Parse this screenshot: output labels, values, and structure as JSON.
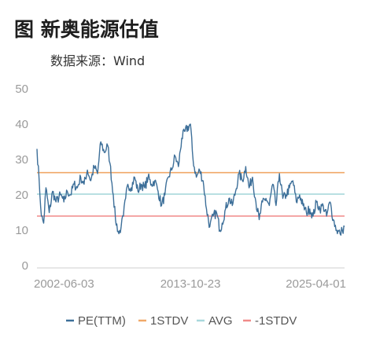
{
  "header": {
    "title": "图 新奥能源估值",
    "source": "数据来源：Wind"
  },
  "chart_data": {
    "type": "line",
    "title": "图 新奥能源估值",
    "subtitle": "数据来源：Wind",
    "xlabel": "",
    "ylabel": "",
    "ylim": [
      0,
      50
    ],
    "yticks": [
      0,
      10,
      20,
      30,
      40,
      50
    ],
    "x_tick_labels": [
      "2002-06-03",
      "2013-10-23",
      "2025-04-01"
    ],
    "x_tick_dates": [
      "2002-06-03",
      "2013-10-23",
      "2025-04-01"
    ],
    "grid": false,
    "legend_position": "bottom",
    "colors": {
      "pe": "#3d6f99",
      "std_plus": "#f0a868",
      "avg": "#a8d8dc",
      "std_minus": "#f08a88"
    },
    "series": [
      {
        "name": "PE(TTM)",
        "type": "line",
        "x": [
          "2002-06-03",
          "2002-08-01",
          "2002-10-01",
          "2002-12-01",
          "2003-02-01",
          "2003-05-01",
          "2003-08-01",
          "2003-11-01",
          "2004-03-01",
          "2004-06-01",
          "2004-09-01",
          "2004-12-01",
          "2005-03-01",
          "2005-06-01",
          "2005-09-01",
          "2005-12-01",
          "2006-03-01",
          "2006-06-01",
          "2006-09-01",
          "2006-12-01",
          "2007-03-01",
          "2007-06-01",
          "2007-09-01",
          "2007-11-01",
          "2008-02-01",
          "2008-04-01",
          "2008-07-01",
          "2008-09-01",
          "2008-11-01",
          "2009-01-01",
          "2009-03-01",
          "2009-06-01",
          "2009-09-01",
          "2009-12-01",
          "2010-03-01",
          "2010-06-01",
          "2010-09-01",
          "2010-12-01",
          "2011-03-01",
          "2011-06-01",
          "2011-09-01",
          "2011-12-01",
          "2012-03-01",
          "2012-06-01",
          "2012-09-01",
          "2012-12-01",
          "2013-03-01",
          "2013-06-01",
          "2013-10-23",
          "2014-01-01",
          "2014-04-01",
          "2014-07-01",
          "2014-10-01",
          "2015-01-01",
          "2015-04-01",
          "2015-07-01",
          "2015-10-01",
          "2016-01-01",
          "2016-03-01",
          "2016-06-01",
          "2016-09-01",
          "2016-12-01",
          "2017-03-01",
          "2017-06-01",
          "2017-09-01",
          "2017-12-01",
          "2018-03-01",
          "2018-06-01",
          "2018-09-01",
          "2018-12-01",
          "2019-03-01",
          "2019-06-01",
          "2019-09-01",
          "2019-12-01",
          "2020-03-01",
          "2020-06-01",
          "2020-09-01",
          "2020-12-01",
          "2021-03-01",
          "2021-06-01",
          "2021-09-01",
          "2021-12-01",
          "2022-03-01",
          "2022-06-01",
          "2022-09-01",
          "2022-12-01",
          "2023-03-01",
          "2023-06-01",
          "2023-09-01",
          "2023-12-01",
          "2024-03-01",
          "2024-06-01",
          "2024-09-01",
          "2024-12-01",
          "2025-02-01",
          "2025-04-01"
        ],
        "values": [
          33,
          24,
          14,
          12,
          22,
          15,
          21,
          18,
          20,
          18,
          21,
          20,
          23,
          22,
          25,
          23,
          27,
          24,
          28,
          26,
          35,
          32,
          34,
          29,
          20,
          13,
          9,
          11,
          14,
          19,
          23,
          22,
          25,
          21,
          23,
          22,
          25,
          23,
          24,
          21,
          17,
          20,
          25,
          27,
          31,
          28,
          36,
          38,
          40,
          30,
          25,
          27,
          24,
          16,
          11,
          14,
          15,
          10,
          12,
          16,
          19,
          17,
          21,
          26,
          24,
          28,
          22,
          25,
          18,
          13,
          18,
          19,
          17,
          23,
          17,
          26,
          19,
          20,
          22,
          24,
          18,
          20,
          17,
          15,
          16,
          14,
          18,
          16,
          17,
          14,
          18,
          13,
          10,
          9,
          10,
          11
        ]
      },
      {
        "name": "1STDV",
        "type": "line",
        "value": 26.3
      },
      {
        "name": "AVG",
        "type": "line",
        "value": 20.2
      },
      {
        "name": "-1STDV",
        "type": "line",
        "value": 14.0
      }
    ]
  }
}
